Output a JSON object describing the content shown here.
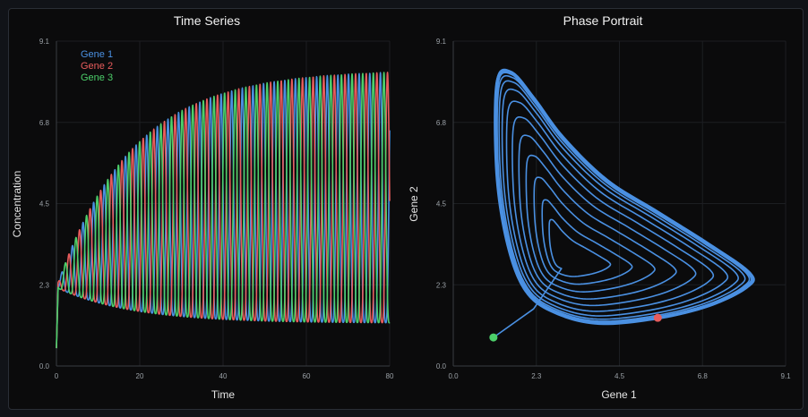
{
  "colors": {
    "gene1": "#4a90e2",
    "gene2": "#e85c5c",
    "gene3": "#4ccf6a",
    "grid": "#1c1e22",
    "axis": "#3a3d42"
  },
  "chart_data": [
    {
      "type": "line",
      "title": "Time Series",
      "xlabel": "Time",
      "ylabel": "Concentration",
      "xlim": [
        0,
        80
      ],
      "ylim": [
        0.0,
        9.1
      ],
      "x_ticks": [
        "0",
        "20",
        "40",
        "60",
        "80"
      ],
      "y_ticks": [
        "0.0",
        "2.3",
        "4.5",
        "6.8",
        "9.1"
      ],
      "legend": "top-left",
      "grid": true,
      "series": [
        {
          "name": "Gene 1",
          "color": "#4a90e2",
          "start": 0.5,
          "min_start": 2.2,
          "max_end": 8.3,
          "min_end": 1.2,
          "phase": 0
        },
        {
          "name": "Gene 2",
          "color": "#e85c5c",
          "start": 0.5,
          "min_start": 2.2,
          "max_end": 8.3,
          "min_end": 1.2,
          "phase": 2.094
        },
        {
          "name": "Gene 3",
          "color": "#4ccf6a",
          "start": 0.5,
          "min_start": 2.2,
          "max_end": 8.3,
          "min_end": 1.2,
          "phase": 4.189
        }
      ],
      "period": 2.55,
      "growth_tau": 18
    },
    {
      "type": "line",
      "title": "Phase Portrait",
      "xlabel": "Gene 1",
      "ylabel": "Gene 2",
      "xlim": [
        0.0,
        9.1
      ],
      "ylim": [
        0.0,
        9.1
      ],
      "x_ticks": [
        "0.0",
        "2.3",
        "4.5",
        "6.8",
        "9.1"
      ],
      "y_ticks": [
        "0.0",
        "2.3",
        "4.5",
        "6.8",
        "9.1"
      ],
      "grid": true,
      "trajectory_color": "#4a90e2",
      "start_point": {
        "x": 1.1,
        "y": 0.8,
        "color": "#4ccf6a"
      },
      "end_point": {
        "x": 5.6,
        "y": 1.35,
        "color": "#e85c5c"
      },
      "limit_cycle": [
        [
          1.2,
          7.9
        ],
        [
          1.6,
          8.2
        ],
        [
          2.2,
          7.5
        ],
        [
          3.0,
          6.4
        ],
        [
          4.2,
          5.2
        ],
        [
          5.6,
          4.3
        ],
        [
          7.0,
          3.4
        ],
        [
          8.1,
          2.6
        ],
        [
          8.0,
          2.2
        ],
        [
          7.0,
          1.7
        ],
        [
          5.6,
          1.35
        ],
        [
          4.0,
          1.2
        ],
        [
          2.8,
          1.5
        ],
        [
          2.0,
          2.1
        ],
        [
          1.5,
          3.4
        ],
        [
          1.2,
          5.4
        ]
      ]
    }
  ]
}
